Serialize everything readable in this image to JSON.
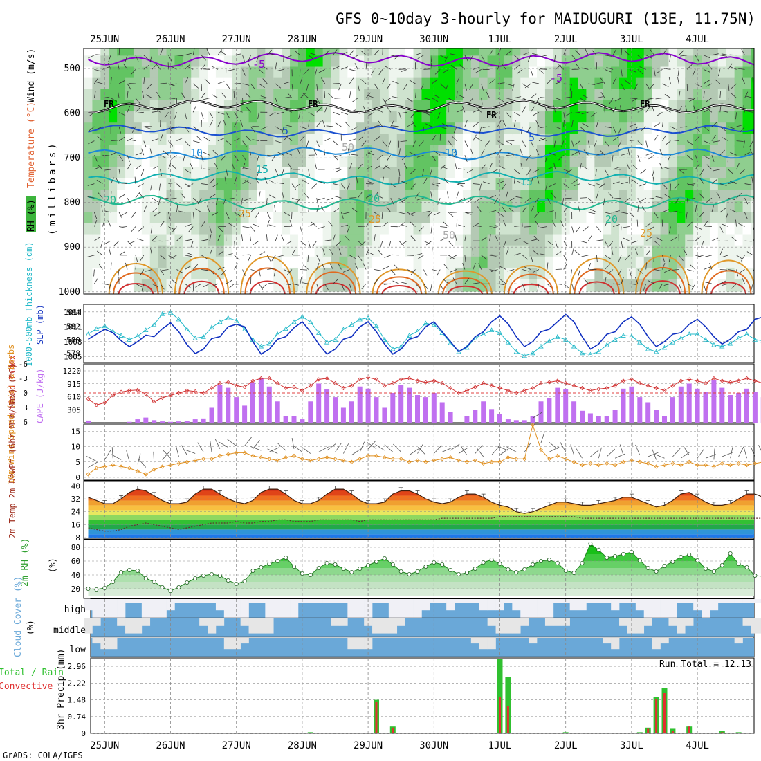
{
  "title": "GFS 0~10day 3-hourly for MAIDUGURI (13E, 11.75N)",
  "footer": "GrADS: COLA/IGES",
  "dates": [
    "25JUN",
    "26JUN",
    "27JUN",
    "28JUN",
    "29JUN",
    "30JUN",
    "1JUL",
    "2JUL",
    "3JUL",
    "4JUL"
  ],
  "colors": {
    "rh_green": "#00e000",
    "rh_mid": "#7ac87a",
    "temp_purple": "#8800cc",
    "temp_blue": "#1a50d0",
    "temp_cyan": "#10b0b0",
    "temp_orange": "#e08a20",
    "slp": "#1030c0",
    "thickness": "#20b8c8",
    "cape": "#c070f0",
    "lifted": "#d03030",
    "wind": "#e09020",
    "rh2m": "#30c030",
    "cloud": "#6aa8d8",
    "rain": "#30c030",
    "convective": "#e03030"
  },
  "panels": {
    "upper": {
      "ylabel_wind": "Wind (m/s)",
      "ylabel_temp": "Temperature (°C)",
      "ylabel_rh": "RH (%)",
      "ylabel_units": "(millibars)",
      "yticks": [
        "500",
        "600",
        "700",
        "800",
        "900",
        "1000"
      ],
      "contour_labels": [
        "-5",
        "-5",
        "FR",
        "FR",
        "FR",
        "FR",
        "5",
        "5",
        "10",
        "10",
        "15",
        "15",
        "20",
        "20",
        "20",
        "25",
        "25",
        "25",
        "50",
        "50"
      ]
    },
    "pressure": {
      "ylabel_thk": "1000-500mb Thickness (dm)",
      "ylabel_slp": "SLP (mb)",
      "left_ticks": [
        "584",
        "582",
        "580",
        "578"
      ],
      "right_ticks": [
        "1014",
        "1011",
        "1008",
        "1005"
      ]
    },
    "cape": {
      "ylabel_li": "Lifted Index",
      "ylabel_cape": "CAPE (J/kg)",
      "left_ticks": [
        "-6",
        "-3",
        "0",
        "3",
        "6"
      ],
      "right_ticks": [
        "1220",
        "915",
        "610",
        "305"
      ]
    },
    "wind10m": {
      "ylabel": "10m Wind Speed (m/s) & Barbs",
      "ticks": [
        "15",
        "10",
        "5",
        "0"
      ]
    },
    "temp2m": {
      "ylabel": "2m Temp 2m DewPt (6hr Min/Max) (°C)",
      "ticks": [
        "40",
        "32",
        "24",
        "16",
        "8"
      ]
    },
    "rh2m": {
      "ylabel": "2m RH (%)",
      "ticks": [
        "80",
        "60",
        "40",
        "20"
      ]
    },
    "cloud": {
      "ylabel": "Cloud Cover (%)",
      "levels": [
        "high",
        "middle",
        "low"
      ]
    },
    "precip": {
      "ylabel": "3hr Precip (mm)",
      "legend_total": "Total / Rain",
      "legend_conv": "Convective",
      "run_total": "Run Total = 12.13",
      "ticks": [
        "2.96",
        "2.22",
        "1.48",
        "0.74",
        "0"
      ]
    }
  },
  "chart_data": {
    "type": "line",
    "x_unit": "3-hourly steps from 24JUN 18Z (step 2 = 25JUN 00Z, 8 steps per day)",
    "slp_mb": [
      1008.5,
      1009.5,
      1010.5,
      1009.8,
      1008.2,
      1007.0,
      1008.0,
      1009.3,
      1009.0,
      1010.6,
      1011.8,
      1010.0,
      1007.4,
      1005.6,
      1006.5,
      1008.6,
      1009.0,
      1011.0,
      1011.5,
      1011.0,
      1008.0,
      1005.5,
      1006.5,
      1008.5,
      1009.0,
      1010.8,
      1012.0,
      1010.0,
      1007.5,
      1005.5,
      1006.5,
      1008.5,
      1009.0,
      1011.0,
      1012.0,
      1010.0,
      1007.5,
      1005.5,
      1006.5,
      1008.5,
      1009.0,
      1011.0,
      1012.0,
      1010.0,
      1008.0,
      1006.0,
      1007.0,
      1009.0,
      1010.0,
      1012.0,
      1013.2,
      1011.6,
      1009.0,
      1007.0,
      1008.0,
      1010.0,
      1010.5,
      1012.0,
      1013.5,
      1012.0,
      1009.0,
      1006.5,
      1007.5,
      1009.5,
      1010.0,
      1012.0,
      1013.0,
      1011.5,
      1009.0,
      1007.0,
      1008.0,
      1009.5,
      1009.8,
      1011.5,
      1012.5,
      1011.0,
      1009.0,
      1007.5,
      1008.5,
      1010.0,
      1010.5,
      1012.5,
      1013.0
    ],
    "thickness_dm": [
      580.8,
      581.6,
      582.0,
      581.2,
      580.6,
      580.0,
      580.5,
      581.4,
      582.2,
      583.8,
      584.0,
      583.0,
      581.5,
      580.2,
      580.4,
      581.8,
      582.6,
      583.2,
      582.8,
      581.5,
      580.0,
      579.0,
      579.4,
      580.8,
      581.6,
      582.6,
      583.4,
      582.6,
      581.0,
      579.6,
      580.0,
      581.5,
      582.2,
      583.0,
      583.2,
      582.0,
      580.0,
      578.6,
      579.0,
      580.6,
      581.2,
      582.4,
      582.2,
      581.0,
      579.5,
      578.2,
      578.8,
      580.2,
      580.8,
      581.4,
      581.0,
      579.6,
      578.2,
      577.6,
      578.0,
      579.0,
      579.8,
      580.4,
      580.0,
      579.0,
      578.0,
      577.8,
      578.2,
      579.2,
      580.0,
      580.6,
      580.5,
      579.6,
      578.6,
      578.2,
      578.8,
      579.6,
      580.2,
      580.8,
      580.8,
      580.0,
      579.2,
      579.0,
      579.4,
      580.2,
      580.8,
      580.0,
      579.8
    ],
    "cape_jkg": [
      50,
      0,
      0,
      0,
      0,
      20,
      80,
      120,
      60,
      30,
      20,
      30,
      40,
      80,
      100,
      350,
      880,
      820,
      600,
      400,
      950,
      1050,
      850,
      500,
      150,
      150,
      80,
      500,
      920,
      780,
      600,
      350,
      500,
      850,
      800,
      600,
      350,
      700,
      880,
      820,
      650,
      600,
      700,
      480,
      250,
      0,
      150,
      300,
      500,
      320,
      200,
      80,
      60,
      60,
      150,
      500,
      580,
      820,
      780,
      500,
      280,
      220,
      150,
      150,
      300,
      800,
      850,
      600,
      480,
      300,
      150,
      600,
      850,
      920,
      800,
      720,
      1000,
      820,
      650,
      700,
      800,
      720,
      600
    ],
    "lifted_index": [
      1.2,
      2.5,
      2.0,
      0.5,
      -0.2,
      -0.5,
      -0.6,
      0.2,
      1.8,
      1.0,
      0.5,
      0.0,
      -0.5,
      -0.3,
      0.0,
      -1.0,
      -2.0,
      -2.2,
      -1.5,
      -1.2,
      -2.5,
      -3.0,
      -3.0,
      -2.0,
      -1.0,
      -1.2,
      -0.5,
      -1.5,
      -2.8,
      -3.0,
      -2.0,
      -1.0,
      -1.5,
      -2.8,
      -3.2,
      -2.8,
      -1.5,
      -2.0,
      -2.8,
      -3.0,
      -2.5,
      -2.2,
      -2.5,
      -2.0,
      -1.0,
      0.0,
      -0.5,
      -1.2,
      -2.0,
      -1.5,
      -1.0,
      -0.5,
      0.0,
      -0.5,
      -1.0,
      -2.0,
      -2.2,
      -2.5,
      -2.0,
      -1.5,
      -1.0,
      -0.5,
      -0.8,
      -1.0,
      -1.5,
      -2.5,
      -2.8,
      -2.0,
      -1.5,
      -1.0,
      -0.5,
      -1.5,
      -2.5,
      -2.8,
      -2.5,
      -2.0,
      -3.0,
      -2.5,
      -2.2,
      -2.5,
      -3.0,
      -2.5,
      -2.0
    ],
    "wind10m_ms": [
      1,
      3,
      3.5,
      4,
      3.5,
      3,
      2,
      1,
      2.5,
      3.5,
      4,
      4.5,
      5,
      5.5,
      6,
      6,
      7,
      7.5,
      8,
      8,
      7,
      6.5,
      6,
      5.5,
      6.5,
      7,
      6,
      5.5,
      6,
      6.5,
      6,
      5.5,
      5,
      6,
      7,
      7,
      6.5,
      6,
      6,
      5,
      5.5,
      5,
      5.5,
      6,
      6.5,
      5.5,
      5,
      5.5,
      4.5,
      5,
      5,
      6.5,
      6,
      6,
      17,
      9,
      6,
      7,
      6,
      5,
      4,
      4.5,
      4,
      4.5,
      4,
      5,
      5.5,
      5,
      4.5,
      3.5,
      4,
      4.5,
      4,
      5,
      4,
      4,
      3.5,
      4.5,
      4,
      4.5,
      4,
      4.5,
      5
    ],
    "temp2m_c": [
      33,
      31,
      29,
      29,
      32,
      36,
      38,
      37,
      34,
      31,
      29,
      29,
      30,
      35,
      38,
      38,
      35,
      32,
      30,
      29,
      31,
      36,
      38,
      38,
      35,
      31,
      29,
      29,
      31,
      35,
      38,
      38,
      35,
      31,
      29,
      29,
      30,
      35,
      37,
      37,
      35,
      32,
      30,
      29,
      30,
      33,
      35,
      35,
      33,
      30,
      28,
      27,
      24,
      23,
      24,
      26,
      28,
      30,
      30,
      29,
      28,
      28,
      29,
      30,
      31,
      33,
      33,
      31,
      29,
      27,
      28,
      31,
      35,
      36,
      33,
      30,
      28,
      28,
      29,
      32,
      35,
      35,
      33,
      30,
      28,
      28,
      27
    ],
    "dewpt2m_c": [
      14,
      13,
      12,
      12,
      13,
      15,
      16,
      17,
      16,
      15,
      14,
      13,
      14,
      15,
      16,
      17,
      17,
      17,
      18,
      17,
      17,
      18,
      18,
      19,
      19,
      18,
      18,
      18,
      19,
      19,
      19,
      19,
      19,
      18,
      19,
      19,
      19,
      19,
      19,
      19,
      19,
      19,
      19,
      20,
      20,
      20,
      20,
      20,
      20,
      20,
      21,
      21,
      21,
      21,
      21,
      21,
      21,
      21,
      21,
      21,
      20,
      20,
      20,
      20,
      20,
      20,
      20,
      20,
      20,
      20,
      20,
      20,
      20,
      20,
      20,
      20,
      20,
      20,
      20,
      20,
      20,
      20,
      20
    ],
    "rh2m_pct": [
      20,
      19,
      21,
      30,
      44,
      47,
      46,
      35,
      30,
      22,
      17,
      22,
      29,
      35,
      39,
      41,
      39,
      32,
      27,
      31,
      46,
      51,
      56,
      60,
      65,
      52,
      42,
      40,
      50,
      57,
      55,
      49,
      44,
      49,
      54,
      59,
      64,
      55,
      45,
      41,
      45,
      52,
      58,
      55,
      47,
      41,
      43,
      49,
      58,
      62,
      56,
      48,
      44,
      48,
      55,
      60,
      62,
      57,
      46,
      43,
      57,
      85,
      76,
      65,
      67,
      70,
      73,
      61,
      50,
      45,
      53,
      59,
      66,
      69,
      61,
      49,
      45,
      54,
      71,
      56,
      51,
      39,
      38
    ]
  }
}
